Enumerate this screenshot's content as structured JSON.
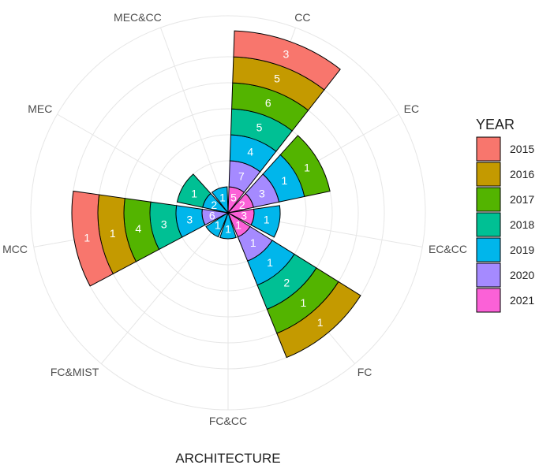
{
  "chart_data": {
    "type": "bar",
    "coord": "polar",
    "xlabel": "ARCHITECTURE",
    "legend_title": "YEAR",
    "legend_position": "right",
    "grid": true,
    "categories": [
      "CC",
      "EC",
      "EC&CC",
      "FC",
      "FC&CC",
      "FC&MIST",
      "MCC",
      "MEC",
      "MEC&CC"
    ],
    "series": [
      {
        "name": "2015",
        "color": "#F8766D",
        "values": [
          3,
          0,
          0,
          0,
          0,
          0,
          1,
          0,
          0
        ]
      },
      {
        "name": "2016",
        "color": "#C49A00",
        "values": [
          5,
          0,
          0,
          1,
          0,
          0,
          1,
          0,
          0
        ]
      },
      {
        "name": "2017",
        "color": "#53B400",
        "values": [
          6,
          1,
          0,
          1,
          0,
          0,
          4,
          0,
          0
        ]
      },
      {
        "name": "2018",
        "color": "#00C094",
        "values": [
          5,
          0,
          0,
          2,
          0,
          0,
          3,
          1,
          0
        ]
      },
      {
        "name": "2019",
        "color": "#00B6EB",
        "values": [
          4,
          1,
          1,
          1,
          1,
          1,
          3,
          2,
          1
        ]
      },
      {
        "name": "2020",
        "color": "#A58AFF",
        "values": [
          7,
          3,
          0,
          1,
          0,
          0,
          6,
          0,
          0
        ]
      },
      {
        "name": "2021",
        "color": "#FB61D7",
        "values": [
          5,
          2,
          3,
          1,
          0,
          0,
          0,
          0,
          0
        ]
      }
    ]
  }
}
